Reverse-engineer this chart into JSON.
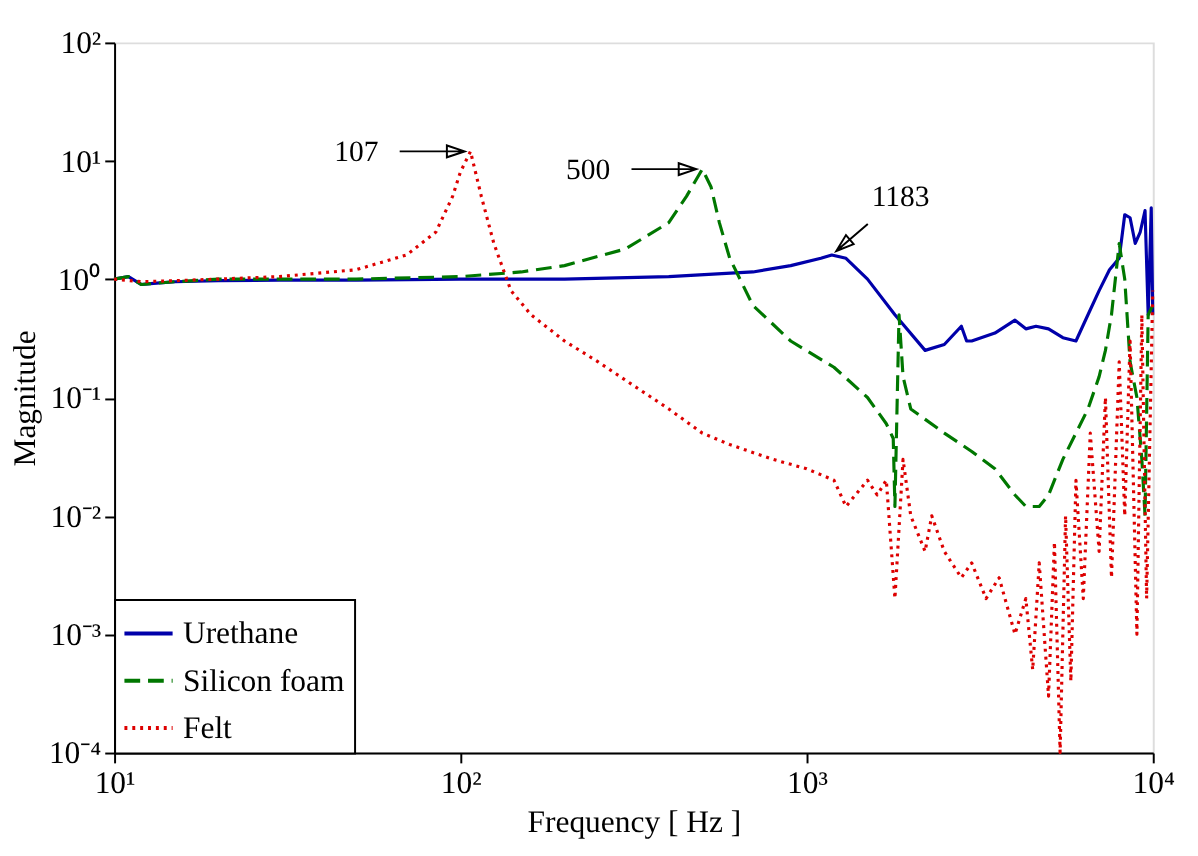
{
  "chart_data": {
    "type": "line",
    "xlabel": "Frequency [ Hz ]",
    "ylabel": "Magnitude",
    "xlim": [
      10,
      10000
    ],
    "ylim": [
      0.0001,
      100
    ],
    "xticks": [
      {
        "value": 10,
        "label": "10¹"
      },
      {
        "value": 100,
        "label": "10²"
      },
      {
        "value": 1000,
        "label": "10³"
      },
      {
        "value": 10000,
        "label": "10⁴"
      }
    ],
    "yticks": [
      {
        "value": 0.0001,
        "label": "10⁻⁴"
      },
      {
        "value": 0.001,
        "label": "10⁻³"
      },
      {
        "value": 0.01,
        "label": "10⁻²"
      },
      {
        "value": 0.1,
        "label": "10⁻¹"
      },
      {
        "value": 1,
        "label": "10⁰"
      },
      {
        "value": 10,
        "label": "10¹"
      },
      {
        "value": 100,
        "label": "10²"
      }
    ],
    "log": "xy",
    "grid": false,
    "legend": "bottom left",
    "marker": "none",
    "series": [
      {
        "name": "Urethane",
        "color": "#0000aa",
        "line_style": "solid",
        "x": [
          10,
          11,
          12,
          13,
          15,
          20,
          30,
          50,
          100,
          200,
          400,
          700,
          900,
          1100,
          1183,
          1300,
          1500,
          1800,
          2200,
          2500,
          2800,
          2900,
          3000,
          3500,
          4000,
          4300,
          4600,
          5000,
          5500,
          6000,
          6500,
          7000,
          7500,
          8000,
          8300,
          8600,
          8900,
          9200,
          9500,
          9700,
          9900,
          10000
        ],
        "values": [
          1,
          1.05,
          0.9,
          0.92,
          0.95,
          0.97,
          0.98,
          0.98,
          1,
          1,
          1.05,
          1.15,
          1.3,
          1.5,
          1.6,
          1.5,
          1.0,
          0.5,
          0.25,
          0.28,
          0.4,
          0.3,
          0.3,
          0.35,
          0.45,
          0.38,
          0.4,
          0.38,
          0.32,
          0.3,
          0.5,
          0.8,
          1.2,
          1.5,
          3.5,
          3.3,
          2.0,
          2.5,
          3.8,
          0.5,
          4.0,
          0.5
        ]
      },
      {
        "name": "Silicon foam",
        "color": "#007700",
        "line_style": "dashed",
        "x": [
          10,
          11,
          12,
          13,
          15,
          20,
          30,
          50,
          100,
          150,
          200,
          300,
          400,
          450,
          500,
          530,
          560,
          600,
          700,
          900,
          1200,
          1500,
          1700,
          1780,
          1800,
          1850,
          1900,
          2000,
          2500,
          3000,
          3500,
          4000,
          4300,
          4700,
          5000,
          5500,
          6000,
          6500,
          7000,
          7300,
          7600,
          8000,
          8300,
          8600,
          9000,
          9300,
          9500,
          9700,
          10000
        ],
        "values": [
          1,
          1.05,
          0.9,
          0.92,
          0.95,
          1,
          1,
          1,
          1.05,
          1.15,
          1.3,
          1.8,
          3,
          5,
          8.5,
          6,
          3,
          1.5,
          0.6,
          0.3,
          0.18,
          0.1,
          0.06,
          0.045,
          0.012,
          0.5,
          0.15,
          0.08,
          0.05,
          0.035,
          0.025,
          0.015,
          0.012,
          0.012,
          0.015,
          0.03,
          0.05,
          0.08,
          0.15,
          0.25,
          0.5,
          2,
          1,
          0.2,
          0.1,
          0.03,
          0.01,
          0.5,
          0.6
        ]
      },
      {
        "name": "Felt",
        "color": "#dd0000",
        "line_style": "dotted",
        "x": [
          10,
          12,
          15,
          20,
          30,
          50,
          70,
          85,
          95,
          100,
          107,
          115,
          125,
          140,
          160,
          200,
          250,
          300,
          400,
          500,
          600,
          800,
          1000,
          1200,
          1300,
          1500,
          1600,
          1700,
          1800,
          1900,
          2000,
          2200,
          2300,
          2500,
          2800,
          3000,
          3300,
          3600,
          4000,
          4300,
          4500,
          4700,
          5000,
          5200,
          5400,
          5600,
          5800,
          6000,
          6300,
          6600,
          7000,
          7300,
          7600,
          8000,
          8300,
          8600,
          9000,
          9300,
          9600,
          10000
        ],
        "values": [
          1,
          0.95,
          0.97,
          1,
          1.05,
          1.2,
          1.6,
          2.5,
          5,
          8,
          12,
          5,
          2,
          0.8,
          0.5,
          0.3,
          0.2,
          0.14,
          0.08,
          0.05,
          0.04,
          0.03,
          0.025,
          0.02,
          0.012,
          0.02,
          0.015,
          0.02,
          0.002,
          0.03,
          0.01,
          0.005,
          0.01,
          0.005,
          0.003,
          0.004,
          0.002,
          0.003,
          0.001,
          0.002,
          0.0005,
          0.004,
          0.0003,
          0.006,
          0.0001,
          0.01,
          0.0004,
          0.02,
          0.002,
          0.05,
          0.005,
          0.1,
          0.003,
          0.2,
          0.01,
          0.3,
          0.001,
          0.5,
          0.002,
          0.8
        ]
      }
    ],
    "annotations": [
      {
        "text": "107",
        "x": 107,
        "y": 12
      },
      {
        "text": "500",
        "x": 500,
        "y": 8.5
      },
      {
        "text": "1183",
        "x": 1183,
        "y": 1.6
      }
    ]
  }
}
